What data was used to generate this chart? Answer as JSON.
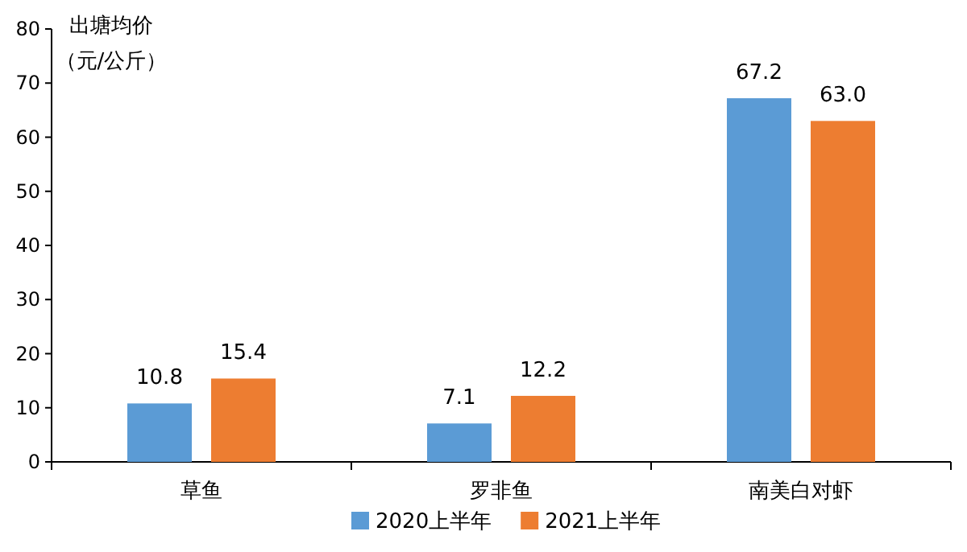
{
  "chart_data": {
    "type": "bar",
    "ylabel": "出塘均价（元/公斤）",
    "categories": [
      "草鱼",
      "罗非鱼",
      "南美白对虾"
    ],
    "series": [
      {
        "name": "2020上半年",
        "color": "#5b9bd5",
        "values": [
          10.8,
          7.1,
          67.2
        ],
        "value_labels": [
          "10.8",
          "7.1",
          "67.2"
        ]
      },
      {
        "name": "2021上半年",
        "color": "#ed7d31",
        "values": [
          15.4,
          12.2,
          63.0
        ],
        "value_labels": [
          "15.4",
          "12.2",
          "63.0"
        ]
      }
    ],
    "ylim": [
      0,
      80
    ],
    "yticks": [
      0,
      10,
      20,
      30,
      40,
      50,
      60,
      70,
      80
    ],
    "grid": false,
    "legend": "bottom"
  }
}
